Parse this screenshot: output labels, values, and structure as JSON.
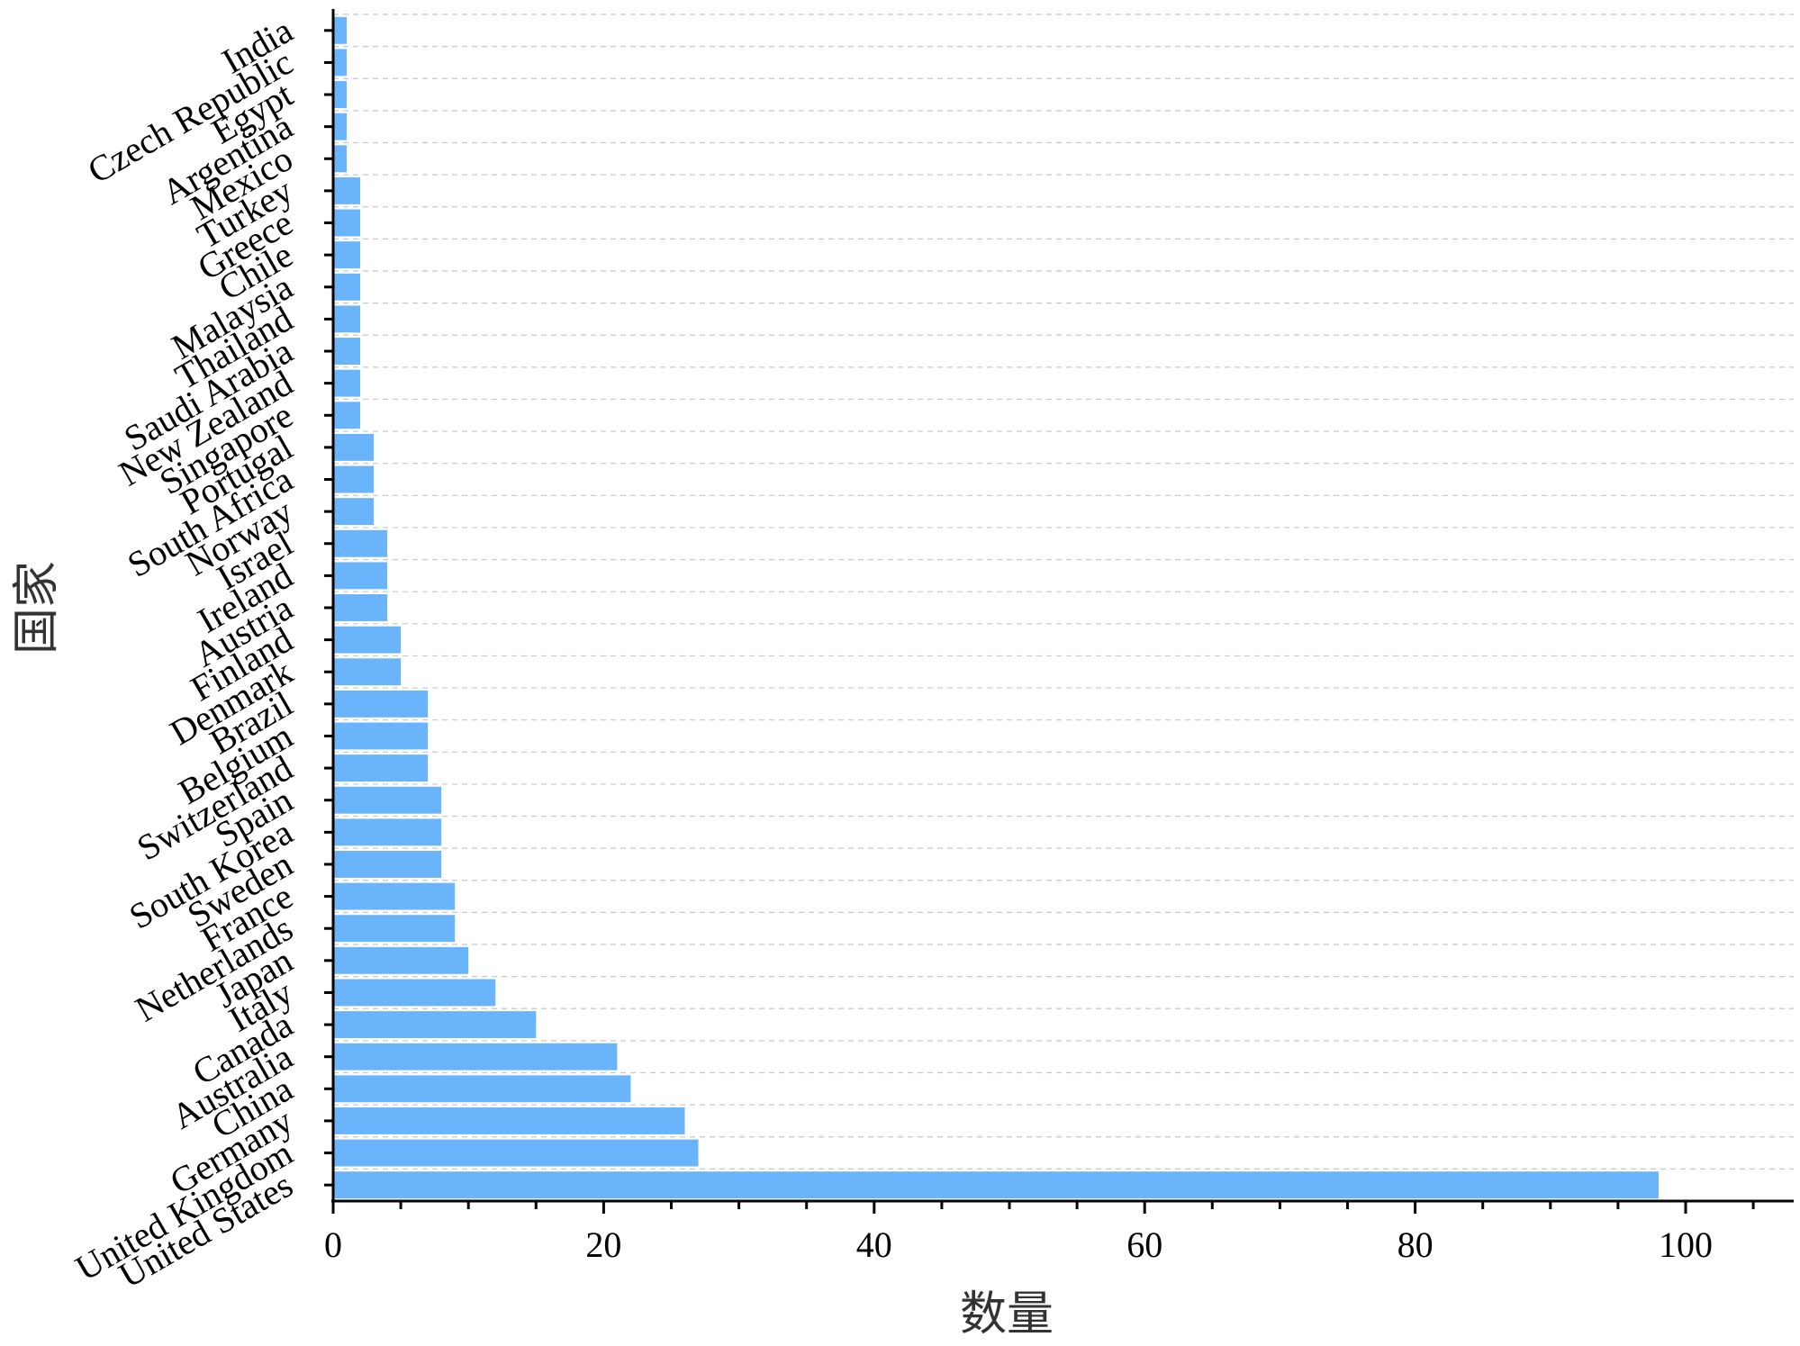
{
  "chart_data": {
    "type": "bar",
    "orientation": "horizontal",
    "xlabel": "数量",
    "ylabel": "国家",
    "xlim": [
      0,
      108
    ],
    "x_ticks": [
      0,
      20,
      40,
      60,
      80,
      100
    ],
    "grid": "horizontal dashed",
    "bar_color": "#6ab4fb",
    "categories": [
      "United States",
      "United Kingdom",
      "Germany",
      "China",
      "Australia",
      "Canada",
      "Italy",
      "Japan",
      "Netherlands",
      "France",
      "Sweden",
      "South Korea",
      "Spain",
      "Switzerland",
      "Belgium",
      "Brazil",
      "Denmark",
      "Finland",
      "Austria",
      "Ireland",
      "Israel",
      "Norway",
      "South Africa",
      "Portugal",
      "Singapore",
      "New Zealand",
      "Saudi Arabia",
      "Thailand",
      "Malaysia",
      "Chile",
      "Greece",
      "Turkey",
      "Mexico",
      "Argentina",
      "Egypt",
      "Czech Republic",
      "India"
    ],
    "values": [
      98,
      27,
      26,
      22,
      21,
      15,
      12,
      10,
      9,
      9,
      8,
      8,
      8,
      7,
      7,
      7,
      5,
      5,
      4,
      4,
      4,
      3,
      3,
      3,
      2,
      2,
      2,
      2,
      2,
      2,
      2,
      2,
      1,
      1,
      1,
      1,
      1
    ]
  }
}
